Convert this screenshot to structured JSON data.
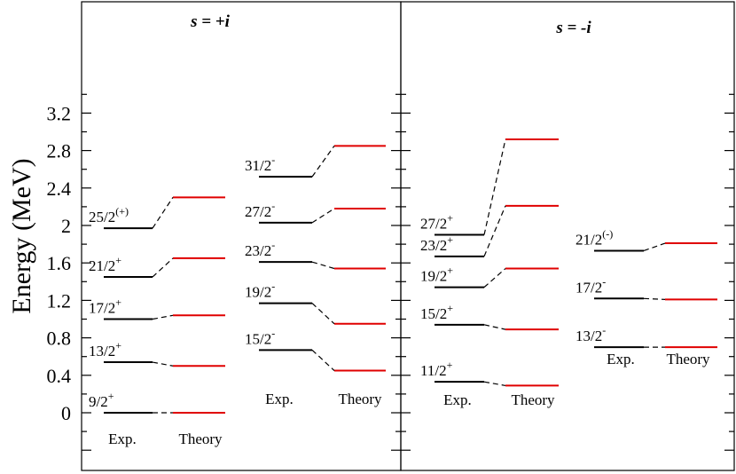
{
  "chart_data": {
    "type": "level-scheme",
    "ylabel": "Energy (MeV)",
    "ylim": [
      -0.45,
      3.5
    ],
    "yticks": [
      "0",
      "0.4",
      "0.8",
      "1.2",
      "1.6",
      "2",
      "2.4",
      "2.8",
      "3.2"
    ],
    "minor_tick_step": 0.2,
    "series_colors": {
      "Exp.": "#000000",
      "Theory": "#e00000"
    },
    "panels": [
      {
        "title": "s = +i",
        "columns": [
          {
            "exp_label": "Exp.",
            "theory_label": "Theory",
            "levels": [
              {
                "spin": "9/2",
                "parity": "+",
                "exp": 0.0,
                "theory": 0.0
              },
              {
                "spin": "13/2",
                "parity": "+",
                "exp": 0.54,
                "theory": 0.5
              },
              {
                "spin": "17/2",
                "parity": "+",
                "exp": 1.0,
                "theory": 1.04
              },
              {
                "spin": "21/2",
                "parity": "+",
                "exp": 1.45,
                "theory": 1.65
              },
              {
                "spin": "25/2",
                "parity": "(+)",
                "exp": 1.97,
                "theory": 2.3
              }
            ]
          },
          {
            "exp_label": "Exp.",
            "theory_label": "Theory",
            "levels": [
              {
                "spin": "15/2",
                "parity": "-",
                "exp": 0.67,
                "theory": 0.45
              },
              {
                "spin": "19/2",
                "parity": "-",
                "exp": 1.17,
                "theory": 0.95
              },
              {
                "spin": "23/2",
                "parity": "-",
                "exp": 1.61,
                "theory": 1.54
              },
              {
                "spin": "27/2",
                "parity": "-",
                "exp": 2.03,
                "theory": 2.18
              },
              {
                "spin": "31/2",
                "parity": "-",
                "exp": 2.52,
                "theory": 2.85
              }
            ]
          }
        ]
      },
      {
        "title": "s = -i",
        "columns": [
          {
            "exp_label": "Exp.",
            "theory_label": "Theory",
            "levels": [
              {
                "spin": "11/2",
                "parity": "+",
                "exp": 0.33,
                "theory": 0.29
              },
              {
                "spin": "15/2",
                "parity": "+",
                "exp": 0.94,
                "theory": 0.89
              },
              {
                "spin": "19/2",
                "parity": "+",
                "exp": 1.34,
                "theory": 1.54
              },
              {
                "spin": "23/2",
                "parity": "+",
                "exp": 1.67,
                "theory": 2.21
              },
              {
                "spin": "27/2",
                "parity": "+",
                "exp": 1.9,
                "theory": 2.92
              }
            ]
          },
          {
            "exp_label": "Exp.",
            "theory_label": "Theory",
            "levels": [
              {
                "spin": "13/2",
                "parity": "-",
                "exp": 0.7,
                "theory": 0.7
              },
              {
                "spin": "17/2",
                "parity": "-",
                "exp": 1.22,
                "theory": 1.21
              },
              {
                "spin": "21/2",
                "parity": "(-)",
                "exp": 1.73,
                "theory": 1.81
              }
            ]
          }
        ]
      }
    ]
  }
}
